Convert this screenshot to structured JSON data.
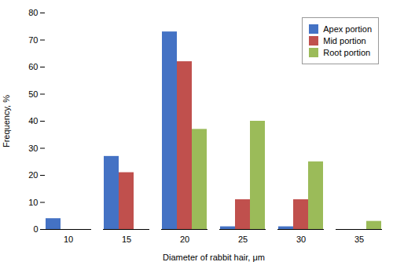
{
  "chart_data": {
    "type": "bar",
    "categories": [
      10,
      15,
      20,
      25,
      30,
      35
    ],
    "series": [
      {
        "name": "Apex portion",
        "color": "#4472C4",
        "values": [
          4,
          27,
          73,
          1,
          1,
          0
        ]
      },
      {
        "name": "Mid portion",
        "color": "#C0504D",
        "values": [
          0,
          21,
          62,
          11,
          11,
          0
        ]
      },
      {
        "name": "Root portion",
        "color": "#9BBB59",
        "values": [
          0,
          0,
          37,
          40,
          25,
          3
        ]
      }
    ],
    "xlabel": "Diameter of rabbit hair, μm",
    "ylabel": "Frequency, %",
    "ylim": [
      0,
      80
    ],
    "yticks": [
      0,
      10,
      20,
      30,
      40,
      50,
      60,
      70,
      80
    ],
    "legend": "upper right",
    "grid": false
  }
}
